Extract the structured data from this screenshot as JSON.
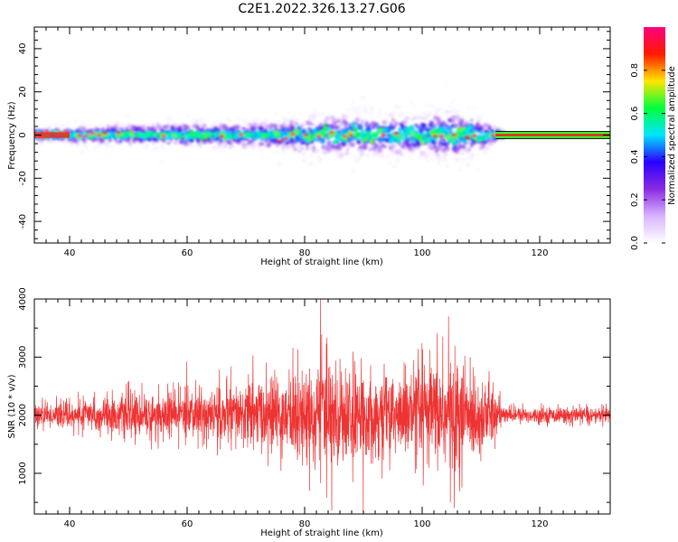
{
  "title": "C2E1.2022.326.13.27.G06",
  "chart_data": [
    {
      "type": "heatmap",
      "xlabel": "Height of straight line (km)",
      "ylabel": "Frequency (Hz)",
      "xlim": [
        34,
        132
      ],
      "ylim": [
        -50,
        50
      ],
      "xticks": [
        40,
        60,
        80,
        100,
        120
      ],
      "yticks": [
        -40,
        -20,
        0,
        20,
        40
      ],
      "colorbar": {
        "label": "Normalized spectral amplitude",
        "range": [
          0.0,
          1.0
        ],
        "ticks": [
          0.0,
          0.2,
          0.4,
          0.6,
          0.8
        ],
        "colormap": [
          "#ffffff",
          "#d8b4ff",
          "#8a2be2",
          "#2a00ff",
          "#00e5ff",
          "#00ff3c",
          "#ffe600",
          "#ff1a00",
          "#ff007f"
        ]
      },
      "noise_envelope": {
        "x": [
          34,
          40,
          50,
          60,
          70,
          75,
          80,
          85,
          90,
          95,
          100,
          105,
          108,
          112,
          114,
          132
        ],
        "half_width_hz": [
          3,
          4,
          5,
          6,
          6,
          7,
          9,
          10,
          10,
          10,
          10,
          12,
          11,
          5,
          1.5,
          1.5
        ]
      },
      "center_line_hz": 0,
      "grid": false
    },
    {
      "type": "line",
      "xlabel": "Height of straight line (km)",
      "ylabel": "SNR (10 * v/v)",
      "xlim": [
        34,
        132
      ],
      "ylim": [
        300,
        4000
      ],
      "xticks": [
        40,
        60,
        80,
        100,
        120
      ],
      "yticks": [
        1000,
        2000,
        3000,
        4000
      ],
      "series_color": "#ee3333",
      "baseline": 2000,
      "amplitude_envelope": {
        "x": [
          34,
          40,
          50,
          60,
          70,
          75,
          80,
          85,
          90,
          95,
          100,
          105,
          108,
          112,
          114,
          132
        ],
        "half_range": [
          200,
          250,
          400,
          450,
          600,
          700,
          900,
          1000,
          800,
          800,
          900,
          1100,
          900,
          600,
          150,
          150
        ]
      },
      "peaks": [
        {
          "x": 59.9,
          "y": 2920
        },
        {
          "x": 71.2,
          "y": 3030
        },
        {
          "x": 82.7,
          "y": 4000
        },
        {
          "x": 84.6,
          "y": 360
        },
        {
          "x": 103.5,
          "y": 3350
        },
        {
          "x": 104.5,
          "y": 3700
        },
        {
          "x": 104.8,
          "y": 500
        }
      ],
      "grid": false
    }
  ]
}
